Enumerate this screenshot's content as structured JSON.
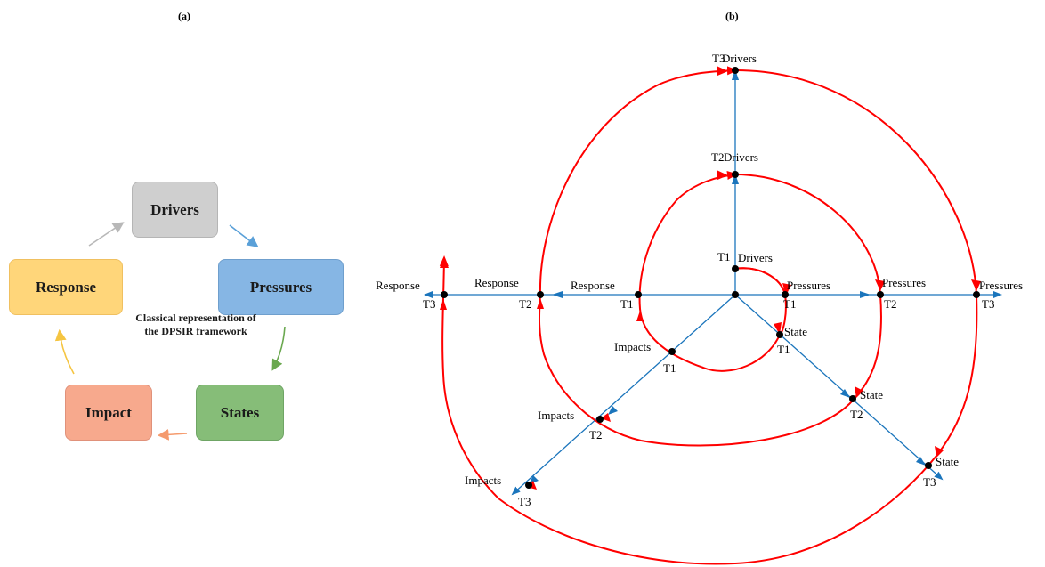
{
  "panel_a": {
    "label": "(a)",
    "boxes": {
      "drivers": "Drivers",
      "pressures": "Pressures",
      "states": "States",
      "impact": "Impact",
      "response": "Response"
    },
    "caption": "Classical representation of the DPSIR framework",
    "colors": {
      "drivers": "#cfcfcf",
      "pressures": "#86b6e4",
      "states": "#86bd78",
      "impact": "#f7a98d",
      "response": "#ffd67a"
    }
  },
  "panel_b": {
    "label": "(b)",
    "axes": {
      "drivers": "Drivers",
      "pressures": "Pressures",
      "state": "State",
      "impacts": "Impacts",
      "response": "Response"
    },
    "times": [
      "T1",
      "T2",
      "T3"
    ],
    "colors": {
      "axis": "#1b75bc",
      "spiral": "#ff0000",
      "node": "#000000"
    }
  }
}
